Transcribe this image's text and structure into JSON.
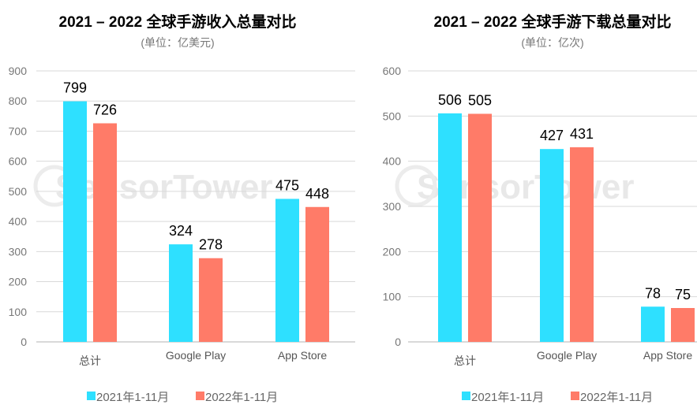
{
  "colors": {
    "series_2021": "#2EE0FF",
    "series_2022": "#FF7B68",
    "grid": "#d9d9d9"
  },
  "watermark": "SensorTower",
  "chart_data": [
    {
      "type": "bar",
      "title": "2021 – 2022 全球手游收入总量对比",
      "subtitle": "(单位：亿美元)",
      "categories": [
        "总计",
        "Google Play",
        "App Store"
      ],
      "series": [
        {
          "name": "2021年1-11月",
          "values": [
            799,
            324,
            475
          ]
        },
        {
          "name": "2022年1-11月",
          "values": [
            726,
            278,
            448
          ]
        }
      ],
      "ylim": [
        0,
        900
      ],
      "yticks": [
        0,
        100,
        200,
        300,
        400,
        500,
        600,
        700,
        800,
        900
      ],
      "grid": true,
      "legend": "bottom"
    },
    {
      "type": "bar",
      "title": "2021 – 2022 全球手游下载总量对比",
      "subtitle": "(单位：亿次)",
      "categories": [
        "总计",
        "Google Play",
        "App Store"
      ],
      "series": [
        {
          "name": "2021年1-11月",
          "values": [
            506,
            427,
            78
          ]
        },
        {
          "name": "2022年1-11月",
          "values": [
            505,
            431,
            75
          ]
        }
      ],
      "ylim": [
        0,
        600
      ],
      "yticks": [
        0,
        100,
        200,
        300,
        400,
        500,
        600
      ],
      "grid": true,
      "legend": "bottom"
    }
  ]
}
